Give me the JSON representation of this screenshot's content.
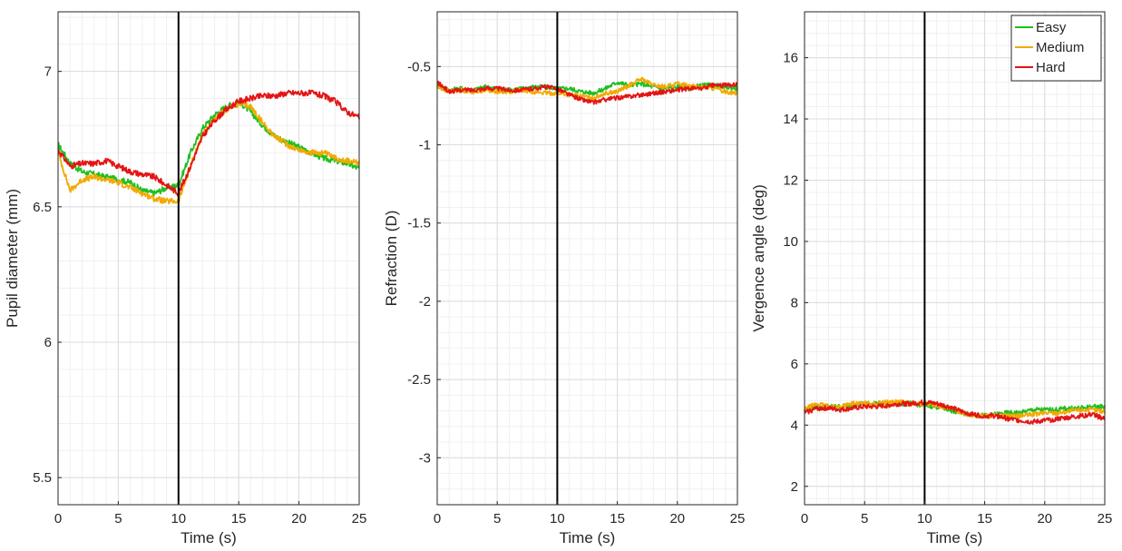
{
  "chart_data": [
    {
      "type": "line",
      "xlabel": "Time (s)",
      "ylabel": "Pupil diameter (mm)",
      "xlim": [
        0,
        25
      ],
      "ylim": [
        5.4,
        7.22
      ],
      "xticks": [
        0,
        5,
        10,
        15,
        20,
        25
      ],
      "yticks": [
        5.5,
        6,
        6.5,
        7
      ],
      "grid": true,
      "vline": 10,
      "legend": false,
      "series": [
        {
          "name": "Easy",
          "color": "#1fbf1f",
          "x": [
            0,
            1,
            2,
            3,
            4,
            5,
            6,
            7,
            8,
            9,
            10,
            11,
            12,
            13,
            14,
            15,
            16,
            17,
            18,
            19,
            20,
            21,
            22,
            23,
            24,
            25
          ],
          "y": [
            6.73,
            6.66,
            6.63,
            6.62,
            6.61,
            6.6,
            6.59,
            6.56,
            6.55,
            6.57,
            6.58,
            6.7,
            6.79,
            6.84,
            6.87,
            6.89,
            6.85,
            6.8,
            6.76,
            6.74,
            6.72,
            6.7,
            6.68,
            6.67,
            6.66,
            6.64
          ]
        },
        {
          "name": "Medium",
          "color": "#f2a900",
          "x": [
            0,
            1,
            2,
            3,
            4,
            5,
            6,
            7,
            8,
            9,
            10,
            11,
            12,
            13,
            14,
            15,
            16,
            17,
            18,
            19,
            20,
            21,
            22,
            23,
            24,
            25
          ],
          "y": [
            6.7,
            6.56,
            6.6,
            6.61,
            6.6,
            6.59,
            6.57,
            6.55,
            6.53,
            6.52,
            6.52,
            6.65,
            6.77,
            6.82,
            6.86,
            6.88,
            6.87,
            6.81,
            6.76,
            6.73,
            6.71,
            6.7,
            6.7,
            6.68,
            6.67,
            6.66
          ]
        },
        {
          "name": "Hard",
          "color": "#e41414",
          "x": [
            0,
            1,
            2,
            3,
            4,
            5,
            6,
            7,
            8,
            9,
            10,
            11,
            12,
            13,
            14,
            15,
            16,
            17,
            18,
            19,
            20,
            21,
            22,
            23,
            24,
            25
          ],
          "y": [
            6.71,
            6.65,
            6.66,
            6.66,
            6.67,
            6.65,
            6.63,
            6.62,
            6.61,
            6.58,
            6.55,
            6.65,
            6.76,
            6.82,
            6.86,
            6.89,
            6.9,
            6.91,
            6.91,
            6.92,
            6.92,
            6.92,
            6.91,
            6.89,
            6.85,
            6.83
          ]
        }
      ]
    },
    {
      "type": "line",
      "xlabel": "Time (s)",
      "ylabel": "Refraction (D)",
      "xlim": [
        0,
        25
      ],
      "ylim": [
        -3.3,
        -0.15
      ],
      "xticks": [
        0,
        5,
        10,
        15,
        20,
        25
      ],
      "yticks": [
        -3,
        -2.5,
        -2,
        -1.5,
        -1,
        -0.5
      ],
      "ytick_labels": [
        "-3",
        "-2.5",
        "-2",
        "-1.5",
        "-1",
        "-0.5"
      ],
      "grid": true,
      "vline": 10,
      "legend": false,
      "series": [
        {
          "name": "Easy",
          "color": "#1fbf1f",
          "x": [
            0,
            1,
            2,
            3,
            4,
            5,
            6,
            7,
            8,
            9,
            10,
            11,
            12,
            13,
            14,
            15,
            16,
            17,
            18,
            19,
            20,
            21,
            22,
            23,
            24,
            25
          ],
          "y": [
            -0.62,
            -0.65,
            -0.64,
            -0.65,
            -0.63,
            -0.64,
            -0.65,
            -0.64,
            -0.63,
            -0.63,
            -0.64,
            -0.64,
            -0.66,
            -0.67,
            -0.64,
            -0.6,
            -0.62,
            -0.61,
            -0.63,
            -0.64,
            -0.63,
            -0.64,
            -0.62,
            -0.62,
            -0.63,
            -0.64
          ]
        },
        {
          "name": "Medium",
          "color": "#f2a900",
          "x": [
            0,
            1,
            2,
            3,
            4,
            5,
            6,
            7,
            8,
            9,
            10,
            11,
            12,
            13,
            14,
            15,
            16,
            17,
            18,
            19,
            20,
            21,
            22,
            23,
            24,
            25
          ],
          "y": [
            -0.63,
            -0.66,
            -0.65,
            -0.66,
            -0.65,
            -0.66,
            -0.66,
            -0.65,
            -0.66,
            -0.67,
            -0.67,
            -0.68,
            -0.69,
            -0.7,
            -0.67,
            -0.66,
            -0.62,
            -0.58,
            -0.62,
            -0.63,
            -0.61,
            -0.62,
            -0.63,
            -0.64,
            -0.66,
            -0.67
          ]
        },
        {
          "name": "Hard",
          "color": "#e41414",
          "x": [
            0,
            1,
            2,
            3,
            4,
            5,
            6,
            7,
            8,
            9,
            10,
            11,
            12,
            13,
            14,
            15,
            16,
            17,
            18,
            19,
            20,
            21,
            22,
            23,
            24,
            25
          ],
          "y": [
            -0.6,
            -0.66,
            -0.65,
            -0.65,
            -0.64,
            -0.64,
            -0.65,
            -0.65,
            -0.64,
            -0.63,
            -0.64,
            -0.68,
            -0.71,
            -0.73,
            -0.71,
            -0.7,
            -0.69,
            -0.68,
            -0.67,
            -0.66,
            -0.65,
            -0.64,
            -0.64,
            -0.62,
            -0.62,
            -0.61
          ]
        }
      ]
    },
    {
      "type": "line",
      "xlabel": "Time (s)",
      "ylabel": "Vergence angle (deg)",
      "xlim": [
        0,
        25
      ],
      "ylim": [
        1.4,
        17.5
      ],
      "xticks": [
        0,
        5,
        10,
        15,
        20,
        25
      ],
      "yticks": [
        2,
        4,
        6,
        8,
        10,
        12,
        14,
        16
      ],
      "grid": true,
      "vline": 10,
      "legend": true,
      "legend_position": "top-right",
      "series": [
        {
          "name": "Easy",
          "color": "#1fbf1f",
          "x": [
            0,
            1,
            2,
            3,
            4,
            5,
            6,
            7,
            8,
            9,
            10,
            11,
            12,
            13,
            14,
            15,
            16,
            17,
            18,
            19,
            20,
            21,
            22,
            23,
            24,
            25
          ],
          "y": [
            4.5,
            4.6,
            4.6,
            4.6,
            4.65,
            4.7,
            4.7,
            4.7,
            4.7,
            4.7,
            4.65,
            4.6,
            4.5,
            4.4,
            4.35,
            4.3,
            4.35,
            4.4,
            4.4,
            4.5,
            4.5,
            4.5,
            4.55,
            4.55,
            4.6,
            4.6
          ]
        },
        {
          "name": "Medium",
          "color": "#f2a900",
          "x": [
            0,
            1,
            2,
            3,
            4,
            5,
            6,
            7,
            8,
            9,
            10,
            11,
            12,
            13,
            14,
            15,
            16,
            17,
            18,
            19,
            20,
            21,
            22,
            23,
            24,
            25
          ],
          "y": [
            4.5,
            4.7,
            4.6,
            4.6,
            4.7,
            4.7,
            4.7,
            4.75,
            4.75,
            4.7,
            4.7,
            4.65,
            4.55,
            4.45,
            4.3,
            4.3,
            4.3,
            4.3,
            4.3,
            4.35,
            4.4,
            4.4,
            4.45,
            4.5,
            4.5,
            4.45
          ]
        },
        {
          "name": "Hard",
          "color": "#e41414",
          "x": [
            0,
            1,
            2,
            3,
            4,
            5,
            6,
            7,
            8,
            9,
            10,
            11,
            12,
            13,
            14,
            15,
            16,
            17,
            18,
            19,
            20,
            21,
            22,
            23,
            24,
            25
          ],
          "y": [
            4.4,
            4.55,
            4.55,
            4.5,
            4.55,
            4.6,
            4.6,
            4.65,
            4.7,
            4.7,
            4.75,
            4.7,
            4.6,
            4.45,
            4.35,
            4.3,
            4.3,
            4.2,
            4.15,
            4.1,
            4.15,
            4.2,
            4.25,
            4.3,
            4.35,
            4.2
          ]
        }
      ]
    }
  ]
}
